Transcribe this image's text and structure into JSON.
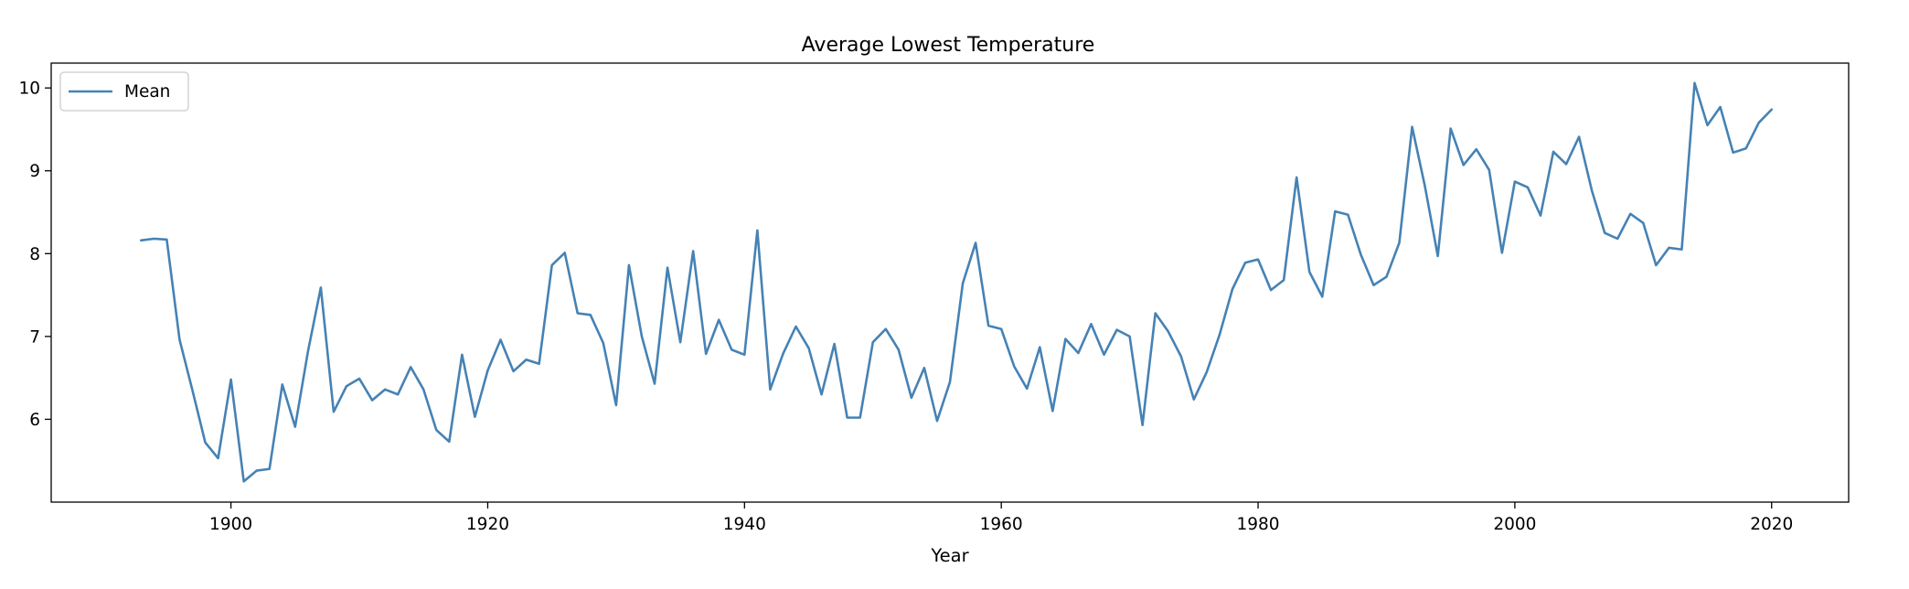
{
  "chart_data": {
    "type": "line",
    "title": "Average Lowest Temperature",
    "xlabel": "Year",
    "ylabel": "",
    "xlim": [
      1886,
      2026
    ],
    "ylim": [
      5.0,
      10.3
    ],
    "xticks": [
      1900,
      1920,
      1940,
      1960,
      1980,
      2000,
      2020
    ],
    "yticks": [
      6,
      7,
      8,
      9,
      10
    ],
    "grid": false,
    "legend_position": "top-left",
    "series": [
      {
        "name": "Mean",
        "color": "#4682b4",
        "x": [
          1893,
          1894,
          1895,
          1896,
          1897,
          1898,
          1899,
          1900,
          1901,
          1902,
          1903,
          1904,
          1905,
          1906,
          1907,
          1908,
          1909,
          1910,
          1911,
          1912,
          1913,
          1914,
          1915,
          1916,
          1917,
          1918,
          1919,
          1920,
          1921,
          1922,
          1923,
          1924,
          1925,
          1926,
          1927,
          1928,
          1929,
          1930,
          1931,
          1932,
          1933,
          1934,
          1935,
          1936,
          1937,
          1938,
          1939,
          1940,
          1941,
          1942,
          1943,
          1944,
          1945,
          1946,
          1947,
          1948,
          1949,
          1950,
          1951,
          1952,
          1953,
          1954,
          1955,
          1956,
          1957,
          1958,
          1959,
          1960,
          1961,
          1962,
          1963,
          1964,
          1965,
          1966,
          1967,
          1968,
          1969,
          1970,
          1971,
          1972,
          1973,
          1974,
          1975,
          1976,
          1977,
          1978,
          1979,
          1980,
          1981,
          1982,
          1983,
          1984,
          1985,
          1986,
          1987,
          1988,
          1989,
          1990,
          1991,
          1992,
          1993,
          1994,
          1995,
          1996,
          1997,
          1998,
          1999,
          2000,
          2001,
          2002,
          2003,
          2004,
          2005,
          2006,
          2007,
          2008,
          2009,
          2010,
          2011,
          2012,
          2013,
          2014,
          2015,
          2016,
          2017,
          2018,
          2019,
          2020
        ],
        "values": [
          8.16,
          8.18,
          8.17,
          6.96,
          6.35,
          5.72,
          5.53,
          6.48,
          5.25,
          5.38,
          5.4,
          6.42,
          5.91,
          6.82,
          7.59,
          6.09,
          6.4,
          6.49,
          6.23,
          6.36,
          6.3,
          6.63,
          6.36,
          5.87,
          5.73,
          6.78,
          6.03,
          6.59,
          6.96,
          6.58,
          6.72,
          6.67,
          7.86,
          8.01,
          7.28,
          7.26,
          6.92,
          6.17,
          7.86,
          7.0,
          6.43,
          7.83,
          6.93,
          8.03,
          6.79,
          7.2,
          6.84,
          6.78,
          8.28,
          6.36,
          6.79,
          7.12,
          6.86,
          6.3,
          6.91,
          6.02,
          6.02,
          6.93,
          7.09,
          6.84,
          6.26,
          6.62,
          5.98,
          6.45,
          7.64,
          8.13,
          7.13,
          7.09,
          6.64,
          6.37,
          6.87,
          6.1,
          6.97,
          6.8,
          7.15,
          6.78,
          7.08,
          7.0,
          5.93,
          7.28,
          7.06,
          6.76,
          6.24,
          6.57,
          7.02,
          7.57,
          7.89,
          7.93,
          7.56,
          7.68,
          8.92,
          7.78,
          7.48,
          8.51,
          8.47,
          7.99,
          7.62,
          7.72,
          8.13,
          9.53,
          8.81,
          7.97,
          9.51,
          9.07,
          9.26,
          9.01,
          8.01,
          8.87,
          8.8,
          8.46,
          9.23,
          9.08,
          9.41,
          8.76,
          8.25,
          8.18,
          8.48,
          8.37,
          7.86,
          8.07,
          8.05,
          10.06,
          9.55,
          9.77,
          9.22,
          9.27,
          9.58,
          9.74
        ]
      }
    ]
  }
}
